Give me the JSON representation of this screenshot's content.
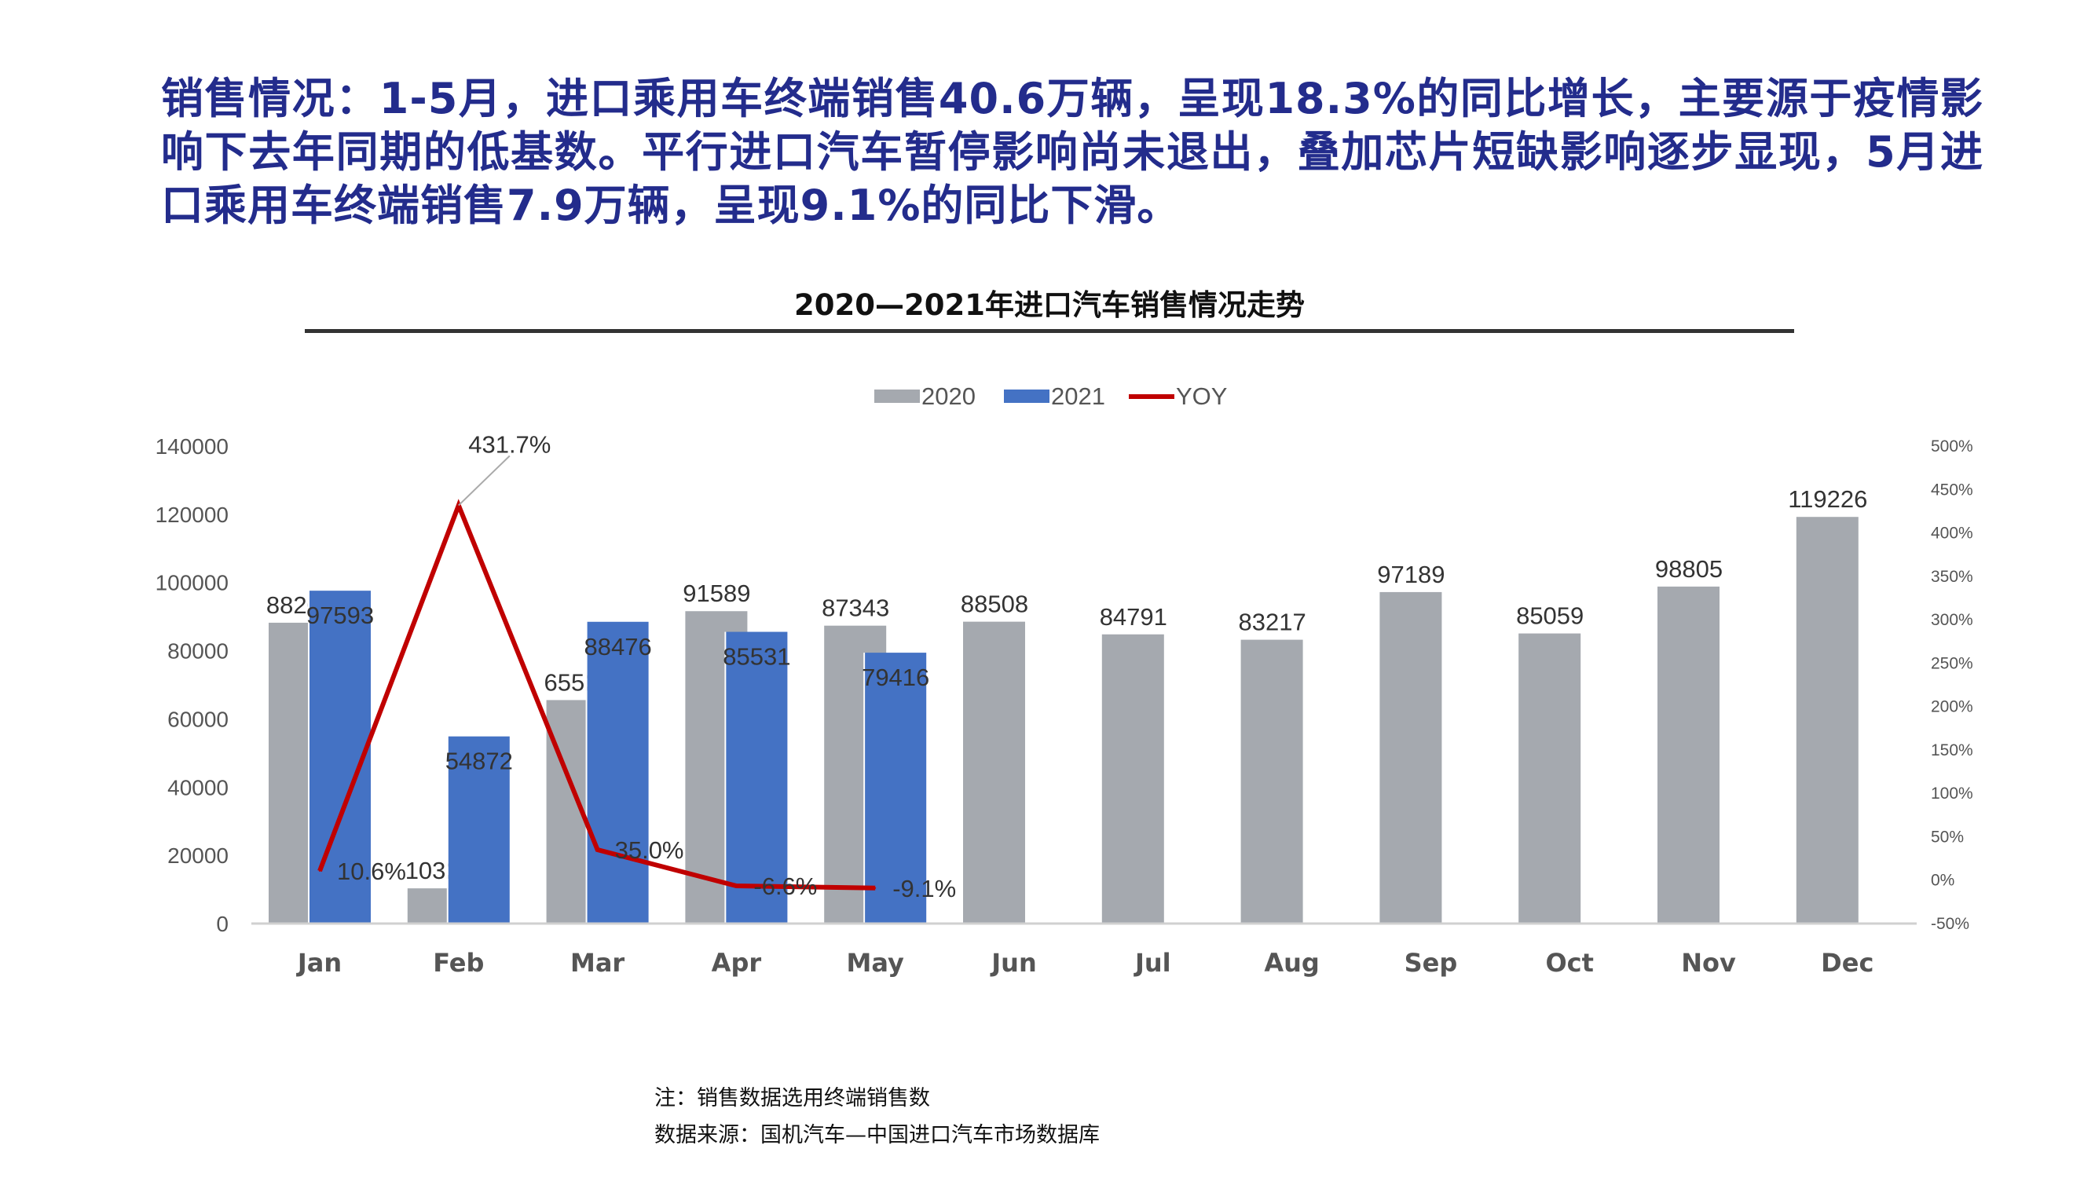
{
  "headline": "销售情况：1-5月，进口乘用车终端销售40.6万辆，呈现18.3%的同比增长，主要源于疫情影响下去年同期的低基数。平行进口汽车暂停影响尚未退出，叠加芯片短缺影响逐步显现，5月进口乘用车终端销售7.9万辆，呈现9.1%的同比下滑。",
  "notes": {
    "note": "注：销售数据选用终端销售数",
    "source": "数据来源：国机汽车—中国进口汽车市场数据库"
  },
  "chart_data": {
    "type": "bar+line",
    "title": "2020—2021年进口汽车销售情况走势",
    "categories": [
      "Jan",
      "Feb",
      "Mar",
      "Apr",
      "May",
      "Jun",
      "Jul",
      "Aug",
      "Sep",
      "Oct",
      "Nov",
      "Dec"
    ],
    "series": [
      {
        "name": "2020",
        "type": "bar",
        "axis": "left",
        "color": "#A5A9AF",
        "values": [
          88206,
          10321,
          65526,
          91589,
          87343,
          88508,
          84791,
          83217,
          97189,
          85059,
          98805,
          119226
        ]
      },
      {
        "name": "2021",
        "type": "bar",
        "axis": "left",
        "color": "#4472C4",
        "values": [
          97593,
          54872,
          88476,
          85531,
          79416,
          null,
          null,
          null,
          null,
          null,
          null,
          null
        ]
      },
      {
        "name": "YOY",
        "type": "line",
        "axis": "right",
        "color": "#C00000",
        "values": [
          10.6,
          431.7,
          35.0,
          -6.6,
          -9.1,
          null,
          null,
          null,
          null,
          null,
          null,
          null
        ],
        "labels": [
          "10.6%",
          "431.7%",
          "35.0%",
          "-6.6%",
          "-9.1%"
        ]
      }
    ],
    "y_left": {
      "range": [
        0,
        140000
      ],
      "ticks": [
        "0",
        "20000",
        "40000",
        "60000",
        "80000",
        "100000",
        "120000",
        "140000"
      ]
    },
    "y_right": {
      "range": [
        -50,
        500
      ],
      "ticks": [
        "-50%",
        "0%",
        "50%",
        "100%",
        "150%",
        "200%",
        "250%",
        "300%",
        "350%",
        "400%",
        "450%",
        "500%"
      ]
    },
    "legend_position": "top",
    "grid": false
  }
}
